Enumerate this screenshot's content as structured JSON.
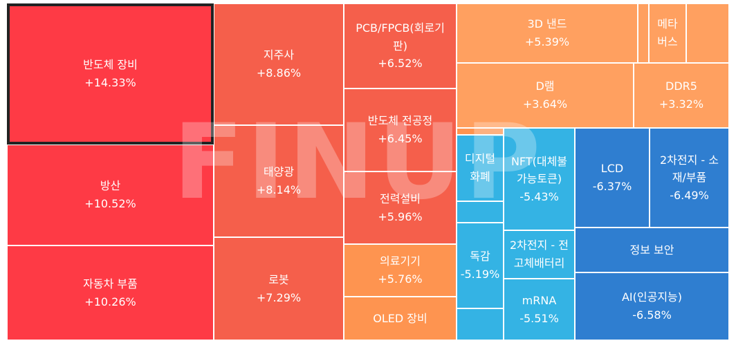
{
  "chart_data": {
    "type": "treemap",
    "sectors": [
      {
        "name": "반도체 장비",
        "change": "+14.33%",
        "selected": true
      },
      {
        "name": "방산",
        "change": "+10.52%"
      },
      {
        "name": "자동차 부품",
        "change": "+10.26%"
      },
      {
        "name": "지주사",
        "change": "+8.86%"
      },
      {
        "name": "태양광",
        "change": "+8.14%"
      },
      {
        "name": "로봇",
        "change": "+7.29%"
      },
      {
        "name": "PCB/FPCB(회로기판)",
        "change": "+6.52%"
      },
      {
        "name": "반도체 전공정",
        "change": "+6.45%"
      },
      {
        "name": "전력설비",
        "change": "+5.96%"
      },
      {
        "name": "의료기기",
        "change": "+5.76%"
      },
      {
        "name": "OLED 장비",
        "change": ""
      },
      {
        "name": "3D 낸드",
        "change": "+5.39%"
      },
      {
        "name": "",
        "change": ""
      },
      {
        "name": "메타버스",
        "change": ""
      },
      {
        "name": "",
        "change": ""
      },
      {
        "name": "D램",
        "change": "+3.64%"
      },
      {
        "name": "DDR5",
        "change": "+3.32%"
      },
      {
        "name": "",
        "change": ""
      },
      {
        "name": "디지털화폐",
        "change": ""
      },
      {
        "name": "NFT(대체불가능토큰)",
        "change": "-5.43%"
      },
      {
        "name": "LCD",
        "change": "-6.37%"
      },
      {
        "name": "2차전지 - 소재/부품",
        "change": "-6.49%"
      },
      {
        "name": "",
        "change": ""
      },
      {
        "name": "2차전지 - 전고체배터리",
        "change": ""
      },
      {
        "name": "정보 보안",
        "change": ""
      },
      {
        "name": "독감",
        "change": "-5.19%"
      },
      {
        "name": "mRNA",
        "change": "-5.51%"
      },
      {
        "name": "AI(인공지능)",
        "change": "-6.58%"
      },
      {
        "name": "",
        "change": ""
      }
    ],
    "colors": {
      "strong_up": "#fe3a45",
      "up": "#f55f4b",
      "mild_up": "#fe9450",
      "flat": "#ffa060",
      "down": "#34b3e4",
      "strong_down": "#2f7ed0"
    }
  },
  "watermark": "FINUP"
}
